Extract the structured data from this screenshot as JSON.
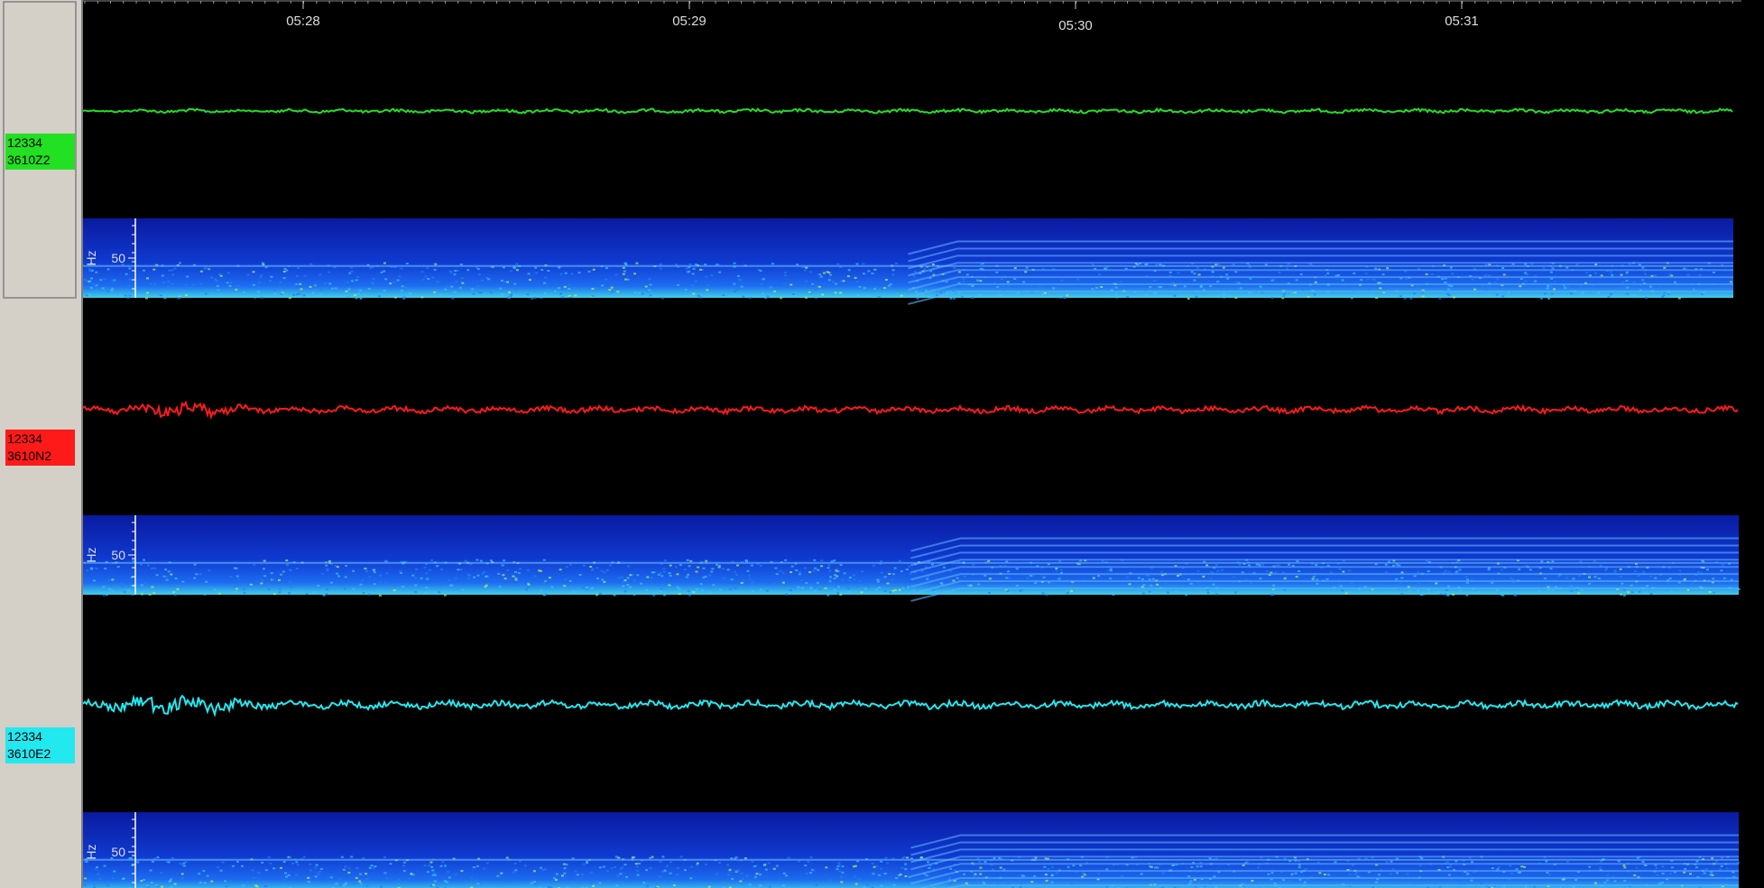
{
  "time_axis": {
    "ticks": [
      "05:28",
      "05:29",
      "05:30",
      "05:31"
    ]
  },
  "channels": [
    {
      "station": "12334",
      "component": "3610Z2",
      "color": "#22e022",
      "spectrogram": {
        "unit": "Hz",
        "tick": "50"
      }
    },
    {
      "station": "12334",
      "component": "3610N2",
      "color": "#ff1a1a",
      "spectrogram": {
        "unit": "Hz",
        "tick": "50"
      }
    },
    {
      "station": "12334",
      "component": "3610E2",
      "color": "#22e8f0",
      "spectrogram": {
        "unit": "Hz",
        "tick": "50"
      }
    }
  ]
}
